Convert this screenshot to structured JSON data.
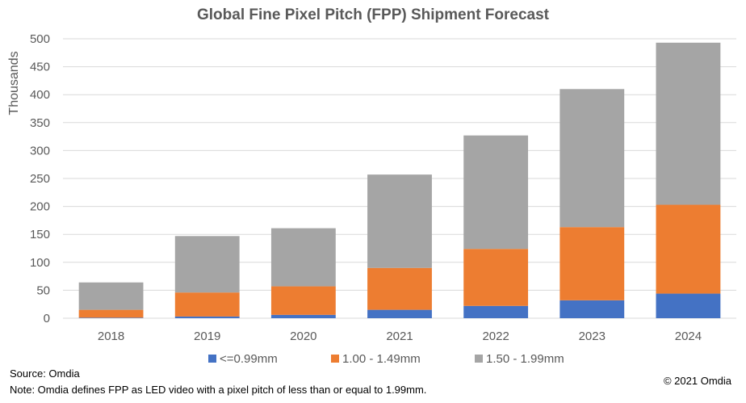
{
  "chart_data": {
    "type": "bar",
    "stacked": true,
    "title": "Global Fine Pixel Pitch (FPP) Shipment Forecast",
    "xlabel": "",
    "ylabel": "Thousands",
    "ylim": [
      0,
      500
    ],
    "yticks": [
      0,
      50,
      100,
      150,
      200,
      250,
      300,
      350,
      400,
      450,
      500
    ],
    "grid": true,
    "legend_position": "bottom",
    "categories": [
      "2018",
      "2019",
      "2020",
      "2021",
      "2022",
      "2023",
      "2024"
    ],
    "series": [
      {
        "name": "<=0.99mm",
        "color": "#4472c4",
        "values": [
          1,
          3,
          6,
          15,
          22,
          32,
          44
        ]
      },
      {
        "name": "1.00 - 1.49mm",
        "color": "#ed7d31",
        "values": [
          14,
          43,
          51,
          75,
          102,
          131,
          159
        ]
      },
      {
        "name": "1.50 - 1.99mm",
        "color": "#a5a5a5",
        "values": [
          49,
          101,
          104,
          167,
          203,
          247,
          290
        ]
      }
    ]
  },
  "footer": {
    "source": "Source: Omdia",
    "note": "Note: Omdia defines FPP as LED video with a pixel pitch of less than or equal to 1.99mm.",
    "copyright": "© 2021 Omdia"
  },
  "colors": {
    "gridline": "#d9d9d9",
    "axis_text": "#595959"
  }
}
